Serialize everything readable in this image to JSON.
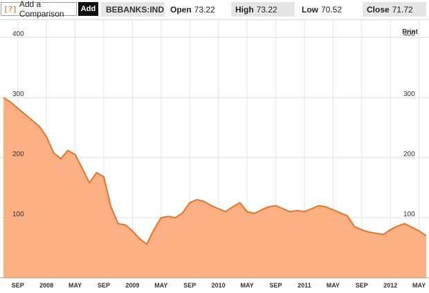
{
  "toolbar": {
    "comparison_icon": "[?]",
    "comparison_label": "Add a Comparison",
    "add_label": "Add",
    "symbol": "BEBANKS:IND",
    "open_label": "Open",
    "open_value": "73.22",
    "high_label": "High",
    "high_value": "73.22",
    "low_label": "Low",
    "low_value": "70.52",
    "close_label": "Close",
    "close_value": "71.72"
  },
  "print_label": "Print",
  "colors": {
    "line": "#f07020",
    "fill": "#fdb084",
    "accent": "#e05a00"
  },
  "chart_data": {
    "type": "area",
    "ylim": [
      0,
      430
    ],
    "y_ticks": [
      100,
      200,
      300,
      400
    ],
    "x_labels": [
      "SEP",
      "2008",
      "MAY",
      "SEP",
      "2009",
      "MAY",
      "SEP",
      "2010",
      "MAY",
      "SEP",
      "2011",
      "MAY",
      "SEP",
      "2012",
      "MAY"
    ],
    "x_start": "2007-07",
    "x_end": "2012-06",
    "series": [
      {
        "values": [
          [
            "2007-07",
            300
          ],
          [
            "2007-08",
            292
          ],
          [
            "2007-09",
            282
          ],
          [
            "2007-10",
            272
          ],
          [
            "2007-11",
            262
          ],
          [
            "2007-12",
            252
          ],
          [
            "2008-01",
            235
          ],
          [
            "2008-02",
            208
          ],
          [
            "2008-03",
            198
          ],
          [
            "2008-04",
            212
          ],
          [
            "2008-05",
            205
          ],
          [
            "2008-06",
            182
          ],
          [
            "2008-07",
            158
          ],
          [
            "2008-08",
            175
          ],
          [
            "2008-09",
            168
          ],
          [
            "2008-10",
            118
          ],
          [
            "2008-11",
            90
          ],
          [
            "2008-12",
            88
          ],
          [
            "2009-01",
            78
          ],
          [
            "2009-02",
            65
          ],
          [
            "2009-03",
            56
          ],
          [
            "2009-04",
            80
          ],
          [
            "2009-05",
            100
          ],
          [
            "2009-06",
            102
          ],
          [
            "2009-07",
            100
          ],
          [
            "2009-08",
            108
          ],
          [
            "2009-09",
            125
          ],
          [
            "2009-10",
            130
          ],
          [
            "2009-11",
            127
          ],
          [
            "2009-12",
            120
          ],
          [
            "2010-01",
            115
          ],
          [
            "2010-02",
            110
          ],
          [
            "2010-03",
            118
          ],
          [
            "2010-04",
            125
          ],
          [
            "2010-05",
            110
          ],
          [
            "2010-06",
            107
          ],
          [
            "2010-07",
            113
          ],
          [
            "2010-08",
            118
          ],
          [
            "2010-09",
            120
          ],
          [
            "2010-10",
            115
          ],
          [
            "2010-11",
            110
          ],
          [
            "2010-12",
            112
          ],
          [
            "2011-01",
            110
          ],
          [
            "2011-02",
            115
          ],
          [
            "2011-03",
            120
          ],
          [
            "2011-04",
            118
          ],
          [
            "2011-05",
            113
          ],
          [
            "2011-06",
            108
          ],
          [
            "2011-07",
            103
          ],
          [
            "2011-08",
            85
          ],
          [
            "2011-09",
            80
          ],
          [
            "2011-10",
            76
          ],
          [
            "2011-11",
            74
          ],
          [
            "2011-12",
            72
          ],
          [
            "2012-01",
            80
          ],
          [
            "2012-02",
            86
          ],
          [
            "2012-03",
            90
          ],
          [
            "2012-04",
            84
          ],
          [
            "2012-05",
            78
          ],
          [
            "2012-06",
            70
          ]
        ]
      }
    ]
  }
}
